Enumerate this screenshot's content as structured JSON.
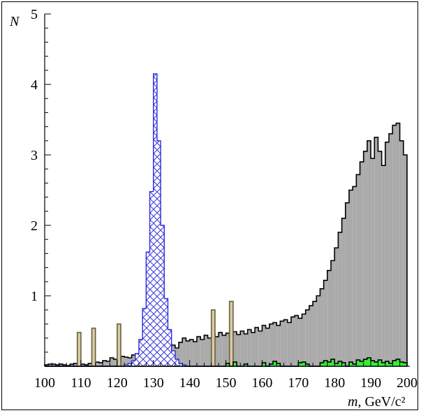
{
  "chart_data": {
    "type": "histogram",
    "xlabel": "m, GeV/c²",
    "ylabel": "N",
    "xlim": [
      100,
      200
    ],
    "ylim": [
      0,
      5
    ],
    "xticks": [
      100,
      110,
      120,
      130,
      140,
      150,
      160,
      170,
      180,
      190,
      200
    ],
    "yticks": [
      1,
      2,
      3,
      4,
      5
    ],
    "bin_width": 1,
    "bin_start": 100,
    "grid": false,
    "legend": "none",
    "series": [
      {
        "kind": "background-gray",
        "color": "#aaaaaa",
        "edge": "#000000",
        "values": [
          0.02,
          0.03,
          0.03,
          0.02,
          0.03,
          0.02,
          0.01,
          0.03,
          0.04,
          0.02,
          0.03,
          0.02,
          0.04,
          0.05,
          0.06,
          0.05,
          0.08,
          0.07,
          0.12,
          0.1,
          0.09,
          0.14,
          0.13,
          0.12,
          0.16,
          0.18,
          0.17,
          0.22,
          0.26,
          0.3,
          0.32,
          0.28,
          0.24,
          0.36,
          0.33,
          0.3,
          0.26,
          0.34,
          0.4,
          0.36,
          0.38,
          0.35,
          0.42,
          0.38,
          0.44,
          0.4,
          0.46,
          0.42,
          0.48,
          0.44,
          0.47,
          0.43,
          0.49,
          0.45,
          0.5,
          0.46,
          0.52,
          0.48,
          0.55,
          0.5,
          0.58,
          0.54,
          0.6,
          0.62,
          0.58,
          0.64,
          0.66,
          0.62,
          0.7,
          0.72,
          0.68,
          0.74,
          0.8,
          0.86,
          0.92,
          1.0,
          1.1,
          1.22,
          1.36,
          1.5,
          1.68,
          1.9,
          2.1,
          2.32,
          2.5,
          2.55,
          2.72,
          2.9,
          3.05,
          3.2,
          2.95,
          3.25,
          3.05,
          2.85,
          3.18,
          3.3,
          3.42,
          3.45,
          3.2,
          3.0
        ]
      },
      {
        "kind": "background-tan",
        "color": "#d8cca4",
        "edge": "#6a6040",
        "values": [
          0,
          0,
          0,
          0,
          0,
          0,
          0,
          0,
          0,
          0.48,
          0,
          0,
          0,
          0.54,
          0,
          0,
          0,
          0,
          0,
          0,
          0.6,
          0,
          0,
          0,
          0,
          0,
          0,
          0,
          0,
          0,
          0,
          0,
          0,
          0,
          0,
          0,
          0,
          0,
          0,
          0,
          0,
          0,
          0,
          0,
          0,
          0,
          0.8,
          0,
          0,
          0,
          0,
          0.92,
          0,
          0,
          0,
          0,
          0,
          0,
          0,
          0,
          0,
          0,
          0,
          0,
          0,
          0,
          0,
          0,
          0,
          0,
          0,
          0,
          0,
          0,
          0,
          0,
          0,
          0,
          0,
          0,
          0,
          0,
          0,
          0,
          0,
          0,
          0,
          0,
          0,
          0,
          0,
          0,
          0,
          0,
          0,
          0,
          0,
          0,
          0,
          0
        ]
      },
      {
        "kind": "signal-hatched",
        "color": "#2a2adf",
        "values": [
          0,
          0,
          0,
          0,
          0,
          0,
          0,
          0,
          0,
          0,
          0,
          0,
          0,
          0,
          0,
          0,
          0,
          0,
          0,
          0,
          0,
          0,
          0.02,
          0.04,
          0.08,
          0.18,
          0.38,
          0.82,
          1.62,
          2.48,
          4.15,
          3.2,
          2.0,
          0.96,
          0.52,
          0.22,
          0.1,
          0.04,
          0.02,
          0,
          0,
          0,
          0,
          0,
          0,
          0,
          0,
          0,
          0,
          0,
          0,
          0,
          0,
          0,
          0,
          0,
          0,
          0,
          0,
          0,
          0,
          0,
          0,
          0,
          0,
          0,
          0,
          0,
          0,
          0,
          0,
          0,
          0,
          0,
          0,
          0,
          0,
          0,
          0,
          0,
          0,
          0,
          0,
          0,
          0,
          0,
          0,
          0,
          0,
          0,
          0,
          0,
          0,
          0,
          0,
          0,
          0,
          0,
          0,
          0
        ]
      },
      {
        "kind": "background-green",
        "color": "#33ee33",
        "edge": "#000000",
        "values": [
          0,
          0,
          0,
          0,
          0,
          0,
          0,
          0,
          0,
          0,
          0,
          0,
          0,
          0,
          0,
          0,
          0,
          0,
          0,
          0,
          0,
          0,
          0,
          0,
          0,
          0,
          0,
          0,
          0,
          0,
          0,
          0,
          0,
          0,
          0,
          0,
          0,
          0,
          0,
          0,
          0,
          0,
          0,
          0,
          0,
          0,
          0,
          0,
          0,
          0,
          0.04,
          0,
          0.06,
          0,
          0,
          0.03,
          0,
          0,
          0,
          0,
          0.05,
          0,
          0.03,
          0.07,
          0.04,
          0,
          0,
          0,
          0,
          0,
          0.05,
          0.06,
          0.03,
          0,
          0,
          0,
          0.05,
          0.08,
          0.06,
          0.1,
          0.04,
          0.07,
          0.05,
          0,
          0.06,
          0.03,
          0.09,
          0.07,
          0.1,
          0.12,
          0.08,
          0.06,
          0.09,
          0.05,
          0.07,
          0.04,
          0.08,
          0.1,
          0.06,
          0.05
        ]
      }
    ]
  }
}
